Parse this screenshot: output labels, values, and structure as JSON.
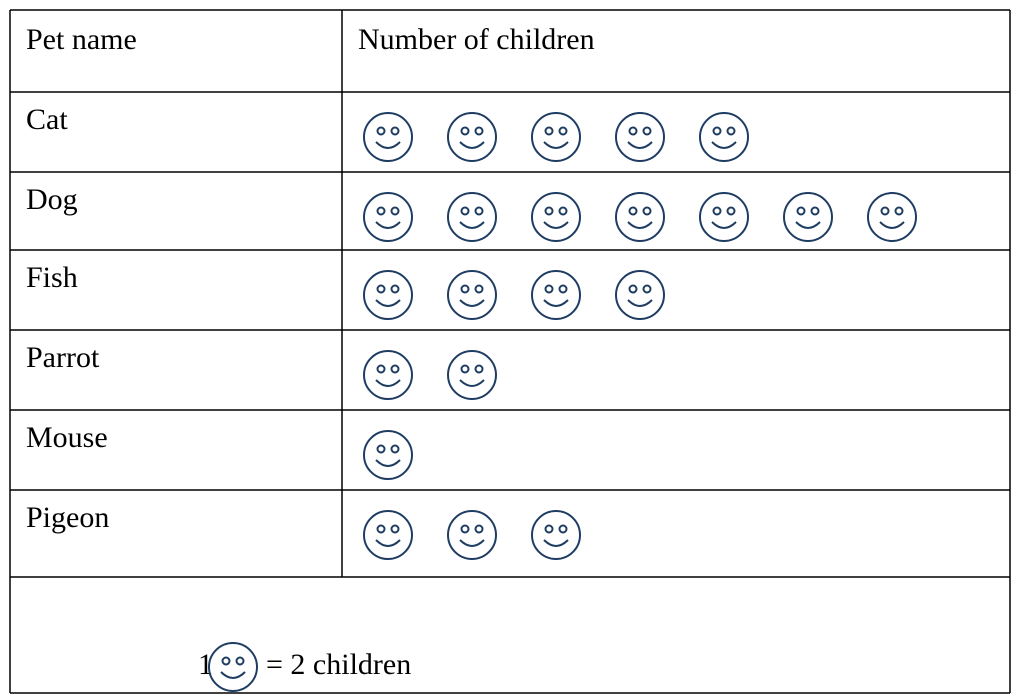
{
  "chart_data": {
    "type": "pictograph",
    "headers": [
      "Pet name",
      "Number of children"
    ],
    "categories": [
      "Cat",
      "Dog",
      "Fish",
      "Parrot",
      "Mouse",
      "Pigeon"
    ],
    "values": [
      5,
      7,
      4,
      2,
      1,
      3
    ],
    "color": "#1f3d63",
    "key": {
      "count": 1,
      "text": "= 2 children"
    }
  }
}
